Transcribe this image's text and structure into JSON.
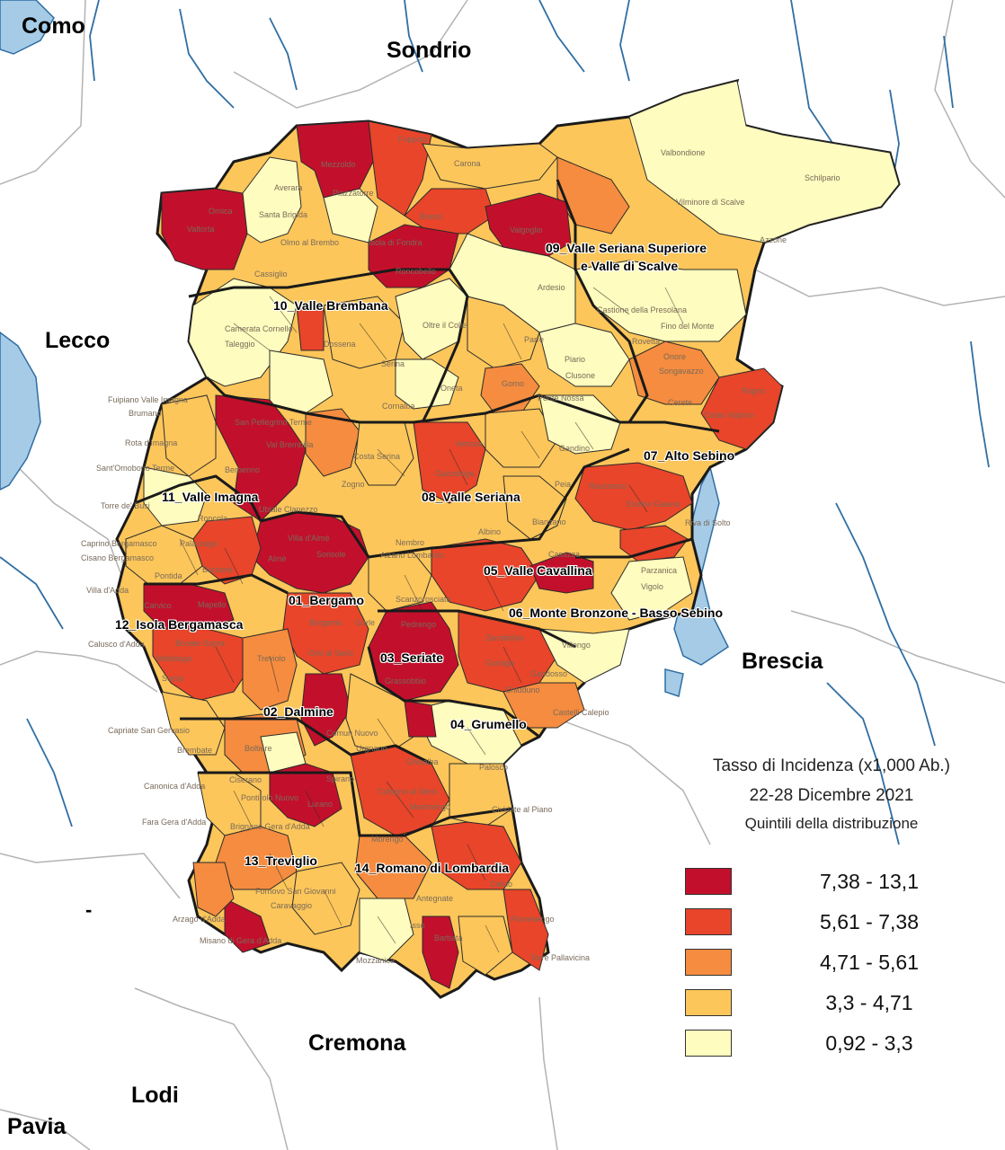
{
  "map": {
    "legend": {
      "title": "Tasso di Incidenza (x1,000 Ab.)",
      "period": "22-28 Dicembre 2021",
      "subtitle": "Quintili della distribuzione",
      "classes": [
        {
          "range": "7,38 - 13,1",
          "color": "#c2102c"
        },
        {
          "range": "5,61 - 7,38",
          "color": "#e8452a"
        },
        {
          "range": "4,71 - 5,61",
          "color": "#f58c3f"
        },
        {
          "range": "3,3 - 4,71",
          "color": "#fcc65a"
        },
        {
          "range": "0,92 - 3,3",
          "color": "#fefcbe"
        }
      ]
    },
    "neighbouring_provinces": {
      "como": "Como",
      "sondrio": "Sondrio",
      "lecco": "Lecco",
      "brescia": "Brescia",
      "cremona": "Cremona",
      "lodi": "Lodi",
      "pavia": "Pavia"
    },
    "districts": {
      "d01": "01_Bergamo",
      "d02": "02_Dalmine",
      "d03": "03_Seriate",
      "d04": "04_Grumello",
      "d05": "05_Valle Cavallina",
      "d06": "06_Monte Bronzone - Basso Sebino",
      "d07": "07_Alto Sebino",
      "d08": "08_Valle Seriana",
      "d09a": "09_Valle Seriana Superiore",
      "d09b": "e Valle di Scalve",
      "d10": "10_Valle Brembana",
      "d11": "11_Valle Imagna",
      "d12": "12_Isola Bergamasca",
      "d13": "13_Treviglio",
      "d14": "14_Romano di Lombardia"
    },
    "municipalities": {
      "foppolo": "Foppolo",
      "mezzoldo": "Mezzoldo",
      "carona": "Carona",
      "valbondione": "Valbondione",
      "schilpario": "Schilpario",
      "vilminore": "Vilminore di Scalve",
      "azzone": "Azzone",
      "averara": "Averara",
      "piazzatorre": "Piazzatorre",
      "ornica": "Ornica",
      "valtorta": "Valtorta",
      "santabrigida": "Santa Brigida",
      "branzi": "Branzi",
      "valgoglio": "Valgoglio",
      "olmo": "Olmo al Brembo",
      "isolafondra": "Isola di Fondra",
      "cassiglio": "Cassiglio",
      "roncobello": "Roncobello",
      "ardesio": "Ardesio",
      "camerata": "Camerata Cornello",
      "taleggio": "Taleggio",
      "dossena": "Dossena",
      "oltreilcolle": "Oltre il Colle",
      "parre": "Parre",
      "castione": "Castione della Presolana",
      "fino": "Fino del Monte",
      "rovetta": "Rovetta",
      "piario": "Piario",
      "clusone": "Clusone",
      "onore": "Onore",
      "songavazzo": "Songavazzo",
      "serina": "Serina",
      "oneta": "Oneta",
      "ponte": "Ponte Nossa",
      "gorno": "Gorno",
      "cerete": "Cerete",
      "rogno": "Rogno",
      "costavolpino": "Costa Volpino",
      "fuipiano": "Fuipiano Valle Imagna",
      "brumano": "Brumano",
      "corna": "Cornalba",
      "sanpellegrino": "San Pellegrino Terme",
      "valbrembilla": "Val Brembilla",
      "vertova": "Vertova",
      "gandino": "Gandino",
      "rota": "Rota d'Imagna",
      "costaserina": "Costa Serina",
      "santomobono": "Sant'Omobono Terme",
      "gazzaniga": "Gazzaniga",
      "torre": "Torre de' Busi",
      "berbenno": "Berbenno",
      "zogno": "Zogno",
      "peia": "Peia",
      "ranzanico": "Ranzanico",
      "endine": "Endine Gaiano",
      "ubiale": "Ubiale Clanezzo",
      "roncola": "Roncola",
      "albino": "Albino",
      "bianzano": "Bianzano",
      "riva": "Riva di Solto",
      "caprino": "Caprino Bergamasco",
      "cisano": "Cisano Bergamasco",
      "palazzago": "Palazzago",
      "villadalme": "Villa d'Almè",
      "sorisole": "Sorisole",
      "nembro": "Nembro",
      "alzano": "Alzano Lombardo",
      "casazza": "Casazza",
      "parzanica": "Parzanica",
      "vigolo": "Vigolo",
      "pontida": "Pontida",
      "barzana": "Barzana",
      "alme": "Almè",
      "villadadda": "Villa d'Adda",
      "carvico": "Carvico",
      "mapello": "Mapello",
      "scanzo": "Scanzorosciate",
      "gorle": "Gorle",
      "bergamo": "Bergamo",
      "pedrengo": "Pedrengo",
      "calusco": "Calusco d'Adda",
      "bonate": "Bonate Sopra",
      "medolago": "Medolago",
      "orio": "Orio al Serio",
      "zandobbio": "Zandobbio",
      "gorlago": "Gorlago",
      "villongo": "Villongo",
      "treviolo": "Treviolo",
      "suisio": "Suisio",
      "grassobbio": "Grassobbio",
      "chiuduno": "Chiuduno",
      "gandosso": "Gandosso",
      "castelli": "Castelli Calepio",
      "capriate": "Capriate San Gervasio",
      "comun": "Comun Nuovo",
      "urgnano": "Urgnano",
      "brembate": "Brembate",
      "boltiere": "Boltiere",
      "ghisalba": "Ghisalba",
      "canonica": "Canonica d'Adda",
      "ciserano": "Ciserano",
      "spirano": "Spirano",
      "cologno": "Cologno al Serio",
      "palosco": "Palosco",
      "pontirolo": "Pontirolo Nuovo",
      "lurano": "Lurano",
      "martinengo": "Martinengo",
      "cividate": "Cividate al Piano",
      "fara": "Fara Gera d'Adda",
      "brignano": "Brignano Gera d'Adda",
      "morengo": "Morengo",
      "calcio": "Calcio",
      "fornovo": "Fornovo San Giovanni",
      "caravaggio": "Caravaggio",
      "antegnate": "Antegnate",
      "pumenengo": "Pumenengo",
      "arzago": "Arzago d'Adda",
      "isso": "Isso",
      "barbata": "Barbata",
      "torrepallavicina": "Torre Pallavicina",
      "misano": "Misano di Gera d'Adda",
      "mozzanica": "Mozzanica"
    }
  }
}
